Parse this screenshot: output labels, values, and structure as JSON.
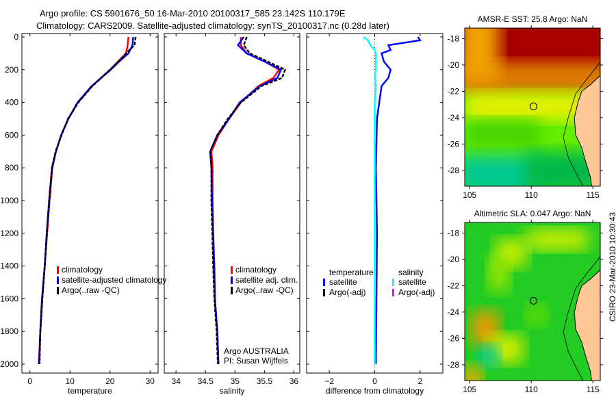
{
  "title_line1": "Argo profile: CS 5901676_50 16-Mar-2010 20100317_585 23.142S 110.179E",
  "title_line2": "Climatology: CARS2009. Satellite-adjusted climatology: synTS_20100317.nc (0.28d later)",
  "credit": "CSIRO 23-Mar-2010 10:30:43",
  "colors": {
    "climatology": "#ff0000",
    "satellite": "#0000ff",
    "argo": "#000000",
    "sal_satellite": "#00ffff",
    "sal_argo": "#ff00ff",
    "land": "#fdc896"
  },
  "chart_data": [
    {
      "type": "line",
      "id": "temp",
      "xlabel": "temperature",
      "ylabel": "",
      "xlim": [
        -2,
        32
      ],
      "ylim": [
        2000,
        0
      ],
      "xticks": [
        0,
        10,
        20,
        30
      ],
      "yticks": [
        0,
        200,
        400,
        600,
        800,
        1000,
        1200,
        1400,
        1600,
        1800,
        2000
      ],
      "depth": [
        0,
        50,
        100,
        150,
        200,
        300,
        400,
        500,
        600,
        700,
        800,
        1000,
        1200,
        1400,
        1600,
        1800,
        2000
      ],
      "series": [
        {
          "name": "climatology",
          "color": "#ff0000",
          "values": [
            24.6,
            24.4,
            24.0,
            22.0,
            20.0,
            15.5,
            12.0,
            9.6,
            7.8,
            6.5,
            5.6,
            4.9,
            4.3,
            3.7,
            3.1,
            2.6,
            2.2
          ]
        },
        {
          "name": "satellite-adjusted climatology",
          "color": "#0000ff",
          "values": [
            25.8,
            25.6,
            24.6,
            22.3,
            20.2,
            15.4,
            11.9,
            9.6,
            7.8,
            6.5,
            5.5,
            4.8,
            4.2,
            3.7,
            3.0,
            2.6,
            2.3
          ]
        },
        {
          "name": "Argo(..raw -QC)",
          "color": "#000000",
          "values": [
            26.4,
            26.1,
            24.0,
            22.1,
            20.0,
            15.6,
            12.1,
            9.5,
            7.9,
            6.4,
            5.5,
            4.8,
            4.2,
            3.7,
            3.1,
            2.6,
            2.4
          ]
        }
      ],
      "legend": [
        "climatology",
        "satellite-adjusted climatology",
        "Argo(..raw -QC)"
      ]
    },
    {
      "type": "line",
      "id": "sal",
      "xlabel": "salinity",
      "xlim": [
        33.8,
        36.1
      ],
      "ylim": [
        2000,
        0
      ],
      "xticks": [
        34,
        34.5,
        35,
        35.5,
        36
      ],
      "xticklabels": [
        "34",
        "34.5",
        "35",
        "35.5",
        "36"
      ],
      "depth": [
        0,
        50,
        100,
        150,
        200,
        250,
        300,
        400,
        500,
        600,
        700,
        800,
        1000,
        1400,
        1600,
        1800,
        2000
      ],
      "series": [
        {
          "name": "climatology",
          "color": "#ff0000",
          "values": [
            35.1,
            35.1,
            35.2,
            35.5,
            35.75,
            35.65,
            35.4,
            35.1,
            34.9,
            34.72,
            34.6,
            34.62,
            34.62,
            34.64,
            34.66,
            34.7,
            34.72
          ]
        },
        {
          "name": "satellite adj. clim.",
          "color": "#0000ff",
          "values": [
            35.15,
            35.05,
            35.2,
            35.5,
            35.78,
            35.72,
            35.42,
            35.08,
            34.9,
            34.7,
            34.58,
            34.6,
            34.61,
            34.65,
            34.66,
            34.7,
            34.72
          ]
        },
        {
          "name": "Argo(..raw -QC)",
          "color": "#000000",
          "values": [
            35.2,
            35.15,
            35.25,
            35.55,
            35.85,
            35.8,
            35.45,
            35.1,
            34.88,
            34.7,
            34.58,
            34.6,
            34.6,
            34.63,
            34.65,
            34.69,
            34.71
          ]
        }
      ],
      "legend": [
        "climatology",
        "satellite adj. clim.",
        "Argo(..raw -QC)"
      ],
      "annotation": [
        "Argo AUSTRALIA",
        "PI: Susan Wijffels"
      ]
    },
    {
      "type": "line",
      "id": "diff",
      "xlabel": "difference from climatology",
      "xlim": [
        -3,
        3
      ],
      "ylim": [
        2000,
        0
      ],
      "xticks": [
        -2,
        0,
        2
      ],
      "depth": [
        0,
        20,
        50,
        80,
        100,
        150,
        200,
        250,
        300,
        400,
        500,
        800,
        1200,
        2000
      ],
      "series": [
        {
          "name": "temperature satellite",
          "color": "#0000ff",
          "values": [
            1.9,
            2.0,
            0.6,
            0.7,
            0.3,
            0.4,
            0.7,
            0.6,
            0.3,
            0.2,
            0.1,
            0.05,
            0.1,
            0.05
          ]
        },
        {
          "name": "salinity satellite",
          "color": "#00ffff",
          "values": [
            -0.5,
            -0.3,
            -0.2,
            0.0,
            0.05,
            0.05,
            0.05,
            0.0,
            0.05,
            0.0,
            0.0,
            0.0,
            0.0,
            0.0
          ]
        }
      ],
      "legend_left": {
        "header": "temperature",
        "items": [
          "satellite",
          "Argo(-adj)"
        ]
      },
      "legend_right": {
        "header": "salinity",
        "items": [
          "satellite",
          "Argo(-adj)"
        ]
      }
    },
    {
      "type": "heatmap",
      "id": "sst",
      "title": "AMSR-E SST: 25.8 Argo: NaN",
      "xticks": [
        105,
        110,
        115
      ],
      "yticks": [
        -18,
        -20,
        -22,
        -24,
        -26,
        -28
      ],
      "xlim": [
        104.6,
        115.6
      ],
      "ylim": [
        -29.2,
        -17.2
      ],
      "marker": [
        110.179,
        -23.142
      ]
    },
    {
      "type": "heatmap",
      "id": "sla",
      "title": "Altimetric SLA: 0.047 Argo: NaN",
      "xticks": [
        105,
        110,
        115
      ],
      "yticks": [
        -18,
        -20,
        -22,
        -24,
        -26,
        -28
      ],
      "xlim": [
        104.6,
        115.6
      ],
      "ylim": [
        -29.2,
        -17.2
      ],
      "marker": [
        110.179,
        -23.142
      ]
    }
  ]
}
